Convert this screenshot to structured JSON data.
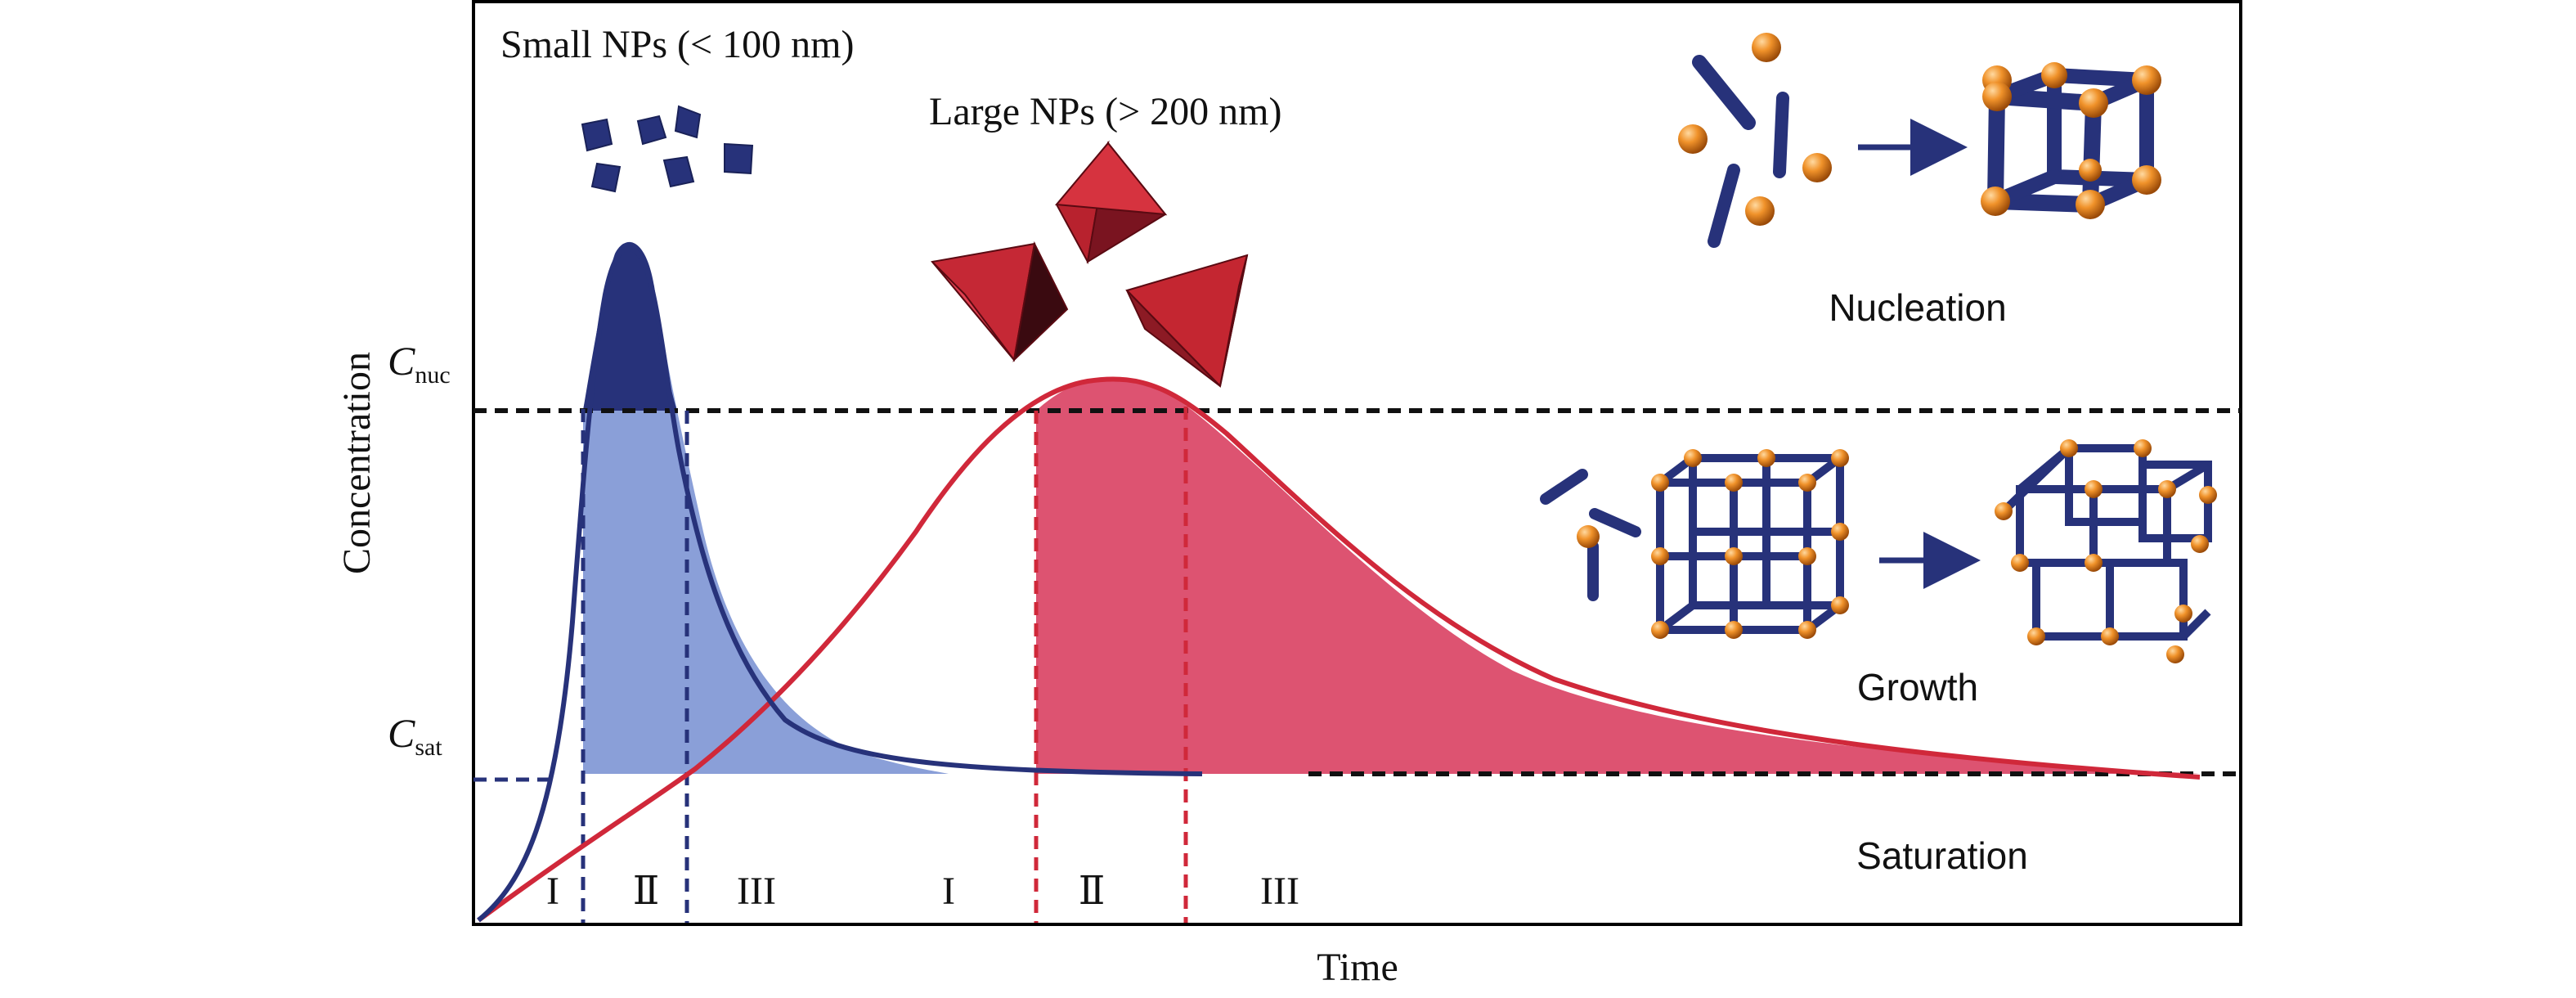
{
  "chart_data": {
    "type": "line",
    "title": "",
    "xlabel": "Time",
    "ylabel": "Concentration",
    "y_markers": [
      {
        "symbol": "C",
        "subscript": "nuc"
      },
      {
        "symbol": "C",
        "subscript": "sat"
      }
    ],
    "series": [
      {
        "name": "Small NPs (< 100 nm)",
        "color": "#27327a",
        "stages": [
          "I",
          "Ⅱ",
          "III"
        ]
      },
      {
        "name": "Large NPs (> 200 nm)",
        "color": "#d0283a",
        "stages": [
          "I",
          "Ⅱ",
          "III"
        ]
      }
    ]
  },
  "labels": {
    "small": "Small NPs (< 100 nm)",
    "large": "Large NPs (> 200 nm)",
    "nucleation": "Nucleation",
    "growth": "Growth",
    "saturation": "Saturation"
  },
  "colors": {
    "blue_line": "#27327a",
    "blue_fill": "#8a9fd8",
    "red_line": "#d0283a",
    "red_fill": "#dc4d6c",
    "sphere": "#f0922a",
    "rod": "#27327a"
  },
  "icons": {
    "cube_particles": "dark-blue-cube-particles",
    "octahedra": "red-octahedron-particles",
    "lattice": "orange-node-blue-rod-lattice"
  }
}
